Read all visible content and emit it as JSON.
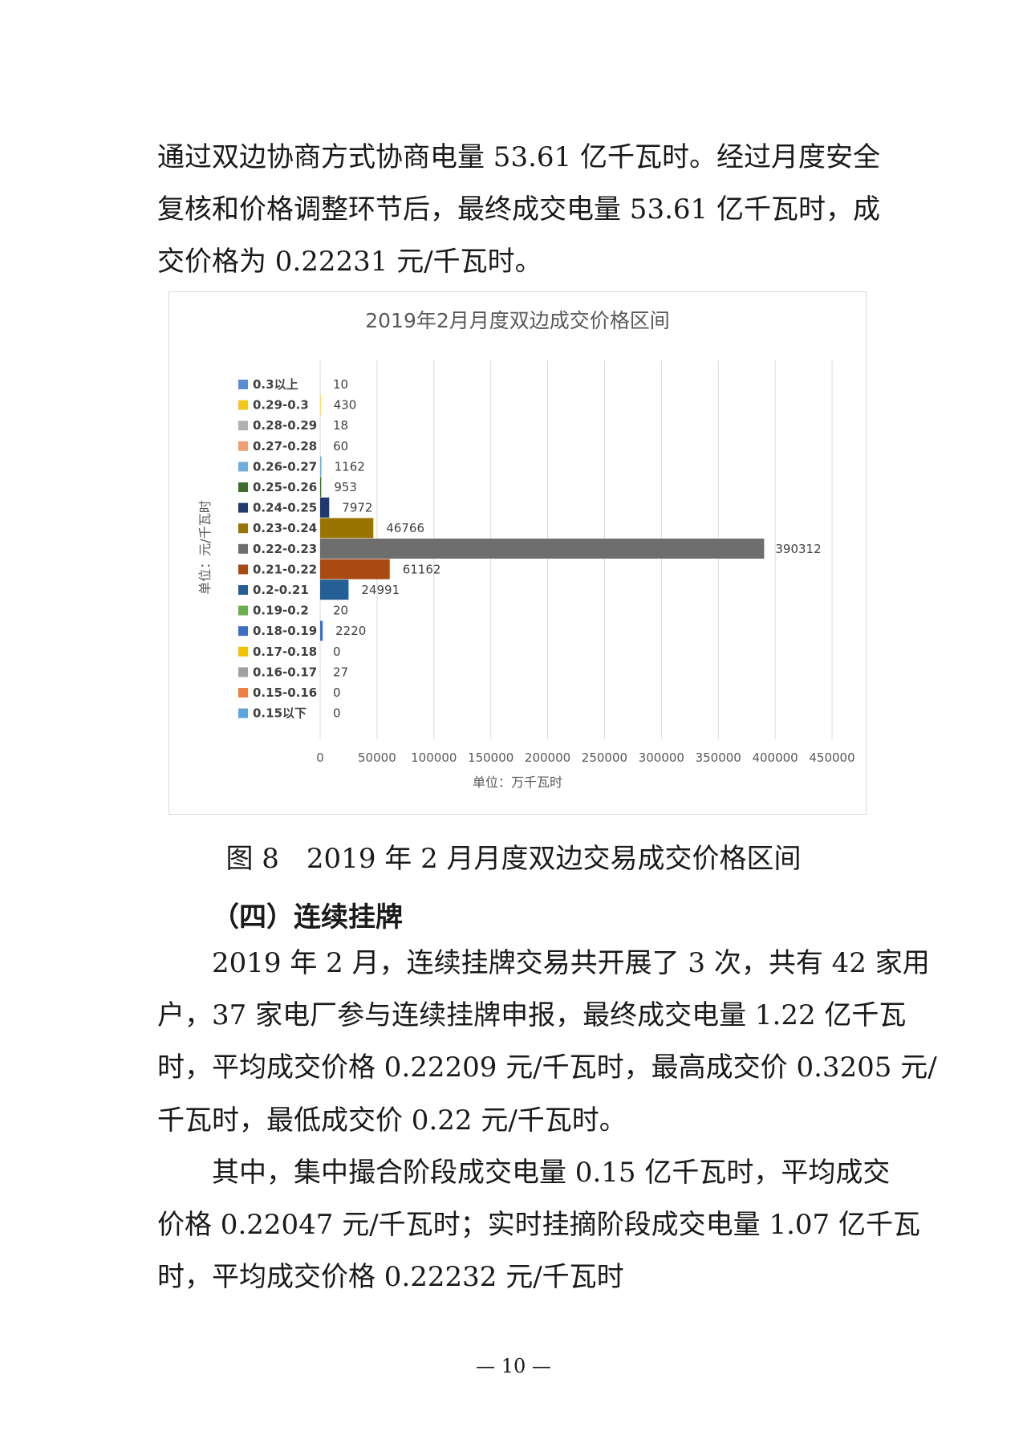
{
  "paragraph1": [
    "通过双边协商方式协商电量 53.61 亿千瓦时。经过月度安全",
    "复核和价格调整环节后，最终成交电量 53.61 亿千瓦时，成",
    "交价格为 0.22231 元/千瓦时。"
  ],
  "caption": "图 8　2019 年 2 月月度双边交易成交价格区间",
  "heading": "（四）连续挂牌",
  "paragraph2": [
    "2019 年 2 月，连续挂牌交易共开展了 3 次，共有 42 家用",
    "户，37 家电厂参与连续挂牌申报，最终成交电量 1.22 亿千瓦",
    "时，平均成交价格 0.22209 元/千瓦时，最高成交价 0.3205 元/",
    "千瓦时，最低成交价 0.22 元/千瓦时。"
  ],
  "paragraph3": [
    "其中，集中撮合阶段成交电量 0.15 亿千瓦时，平均成交",
    "价格 0.22047 元/千瓦时；实时挂摘阶段成交电量 1.07 亿千瓦",
    "时，平均成交价格 0.22232 元/千瓦时"
  ],
  "page_number": "— 10 —",
  "chart_data": {
    "type": "bar",
    "orientation": "horizontal",
    "title": "2019年2月月度双边成交价格区间",
    "xlabel": "单位：万千瓦时",
    "ylabel": "单位：元/千瓦时",
    "xlim": [
      0,
      450000
    ],
    "xticks": [
      0,
      50000,
      100000,
      150000,
      200000,
      250000,
      300000,
      350000,
      400000,
      450000
    ],
    "grid": true,
    "legend": "left",
    "categories": [
      "0.3以上",
      "0.29-0.3",
      "0.28-0.29",
      "0.27-0.28",
      "0.26-0.27",
      "0.25-0.26",
      "0.24-0.25",
      "0.23-0.24",
      "0.22-0.23",
      "0.21-0.22",
      "0.2-0.21",
      "0.19-0.2",
      "0.18-0.19",
      "0.17-0.18",
      "0.16-0.17",
      "0.15-0.16",
      "0.15以下"
    ],
    "values": [
      10,
      430,
      18,
      60,
      1162,
      953,
      7972,
      46766,
      390312,
      61162,
      24991,
      20,
      2220,
      0,
      27,
      0,
      0
    ],
    "colors": [
      "#5b8bd0",
      "#f5c518",
      "#b0b0b0",
      "#f0a070",
      "#70aee0",
      "#3f6e2a",
      "#1f3a6e",
      "#9a7400",
      "#6e6e6e",
      "#a84a12",
      "#245f96",
      "#6ab04c",
      "#3c6fc4",
      "#f5c000",
      "#a0a0a0",
      "#ee8040",
      "#5ba6e0"
    ]
  }
}
